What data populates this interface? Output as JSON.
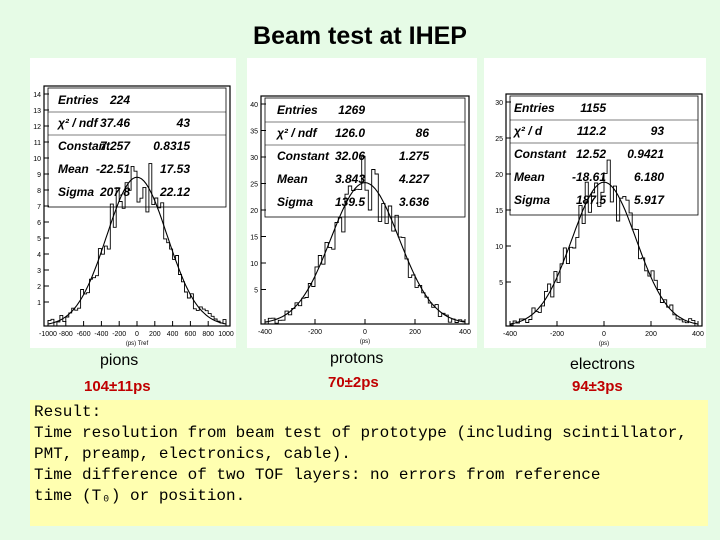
{
  "slide": {
    "title": "Beam test at IHEP"
  },
  "panels": [
    {
      "label": "pions",
      "resolution": "104±11ps",
      "stats": [
        {
          "name": "Entries",
          "value": "224",
          "error": ""
        },
        {
          "name": "χ² / ndf",
          "value": "37.46",
          "error": "43"
        },
        {
          "name": "Constant",
          "value": "7.257",
          "error": "0.8315"
        },
        {
          "name": "Mean",
          "value": "-22.51",
          "error": "17.53"
        },
        {
          "name": "Sigma",
          "value": "207.8",
          "error": "22.12"
        }
      ],
      "x_ticks": [
        "-1000",
        "-800",
        "-600",
        "-400",
        "-200",
        "0",
        "200",
        "400",
        "600",
        "800",
        "1000"
      ],
      "y_ticks": [
        "14",
        "13",
        "12",
        "11",
        "10",
        "9",
        "8",
        "7",
        "6",
        "5",
        "4",
        "3",
        "2",
        "1"
      ],
      "x_axis_label": "(ps) Tref"
    },
    {
      "label": "protons",
      "resolution": "70±2ps",
      "stats": [
        {
          "name": "Entries",
          "value": "1269",
          "error": ""
        },
        {
          "name": "χ² / ndf",
          "value": "126.0",
          "error": "86"
        },
        {
          "name": "Constant",
          "value": "32.06",
          "error": "1.275"
        },
        {
          "name": "Mean",
          "value": "3.843",
          "error": "4.227"
        },
        {
          "name": "Sigma",
          "value": "139.5",
          "error": "3.636"
        }
      ],
      "x_ticks": [
        "-400",
        "-200",
        "0",
        "200",
        "400"
      ],
      "y_ticks": [
        "40",
        "35",
        "30",
        "25",
        "20",
        "15",
        "10",
        "5"
      ],
      "x_axis_label": "(ps)"
    },
    {
      "label": "electrons",
      "resolution": "94±3ps",
      "stats": [
        {
          "name": "Entries",
          "value": "1155",
          "error": ""
        },
        {
          "name": "χ² / d",
          "value": "112.2",
          "error": "93"
        },
        {
          "name": "Constant",
          "value": "12.52",
          "error": "0.9421"
        },
        {
          "name": "Mean",
          "value": "-18.61",
          "error": "6.180"
        },
        {
          "name": "Sigma",
          "value": "187.5",
          "error": "5.917"
        }
      ],
      "x_ticks": [
        "-400",
        "-200",
        "0",
        "200",
        "400"
      ],
      "y_ticks": [
        "30",
        "25",
        "20",
        "15",
        "10",
        "5"
      ],
      "x_axis_label": "(ps)"
    }
  ],
  "result": {
    "lines": [
      "Result:",
      "Time resolution from beam test of prototype (including scintillator,",
      "PMT, preamp, electronics, cable).",
      "Time difference of two TOF layers: no errors from reference",
      "time (T₀) or position."
    ]
  },
  "colors": {
    "background": "#e6fbe6",
    "result_box": "#ffffb0",
    "resolution_text": "#c00000"
  }
}
